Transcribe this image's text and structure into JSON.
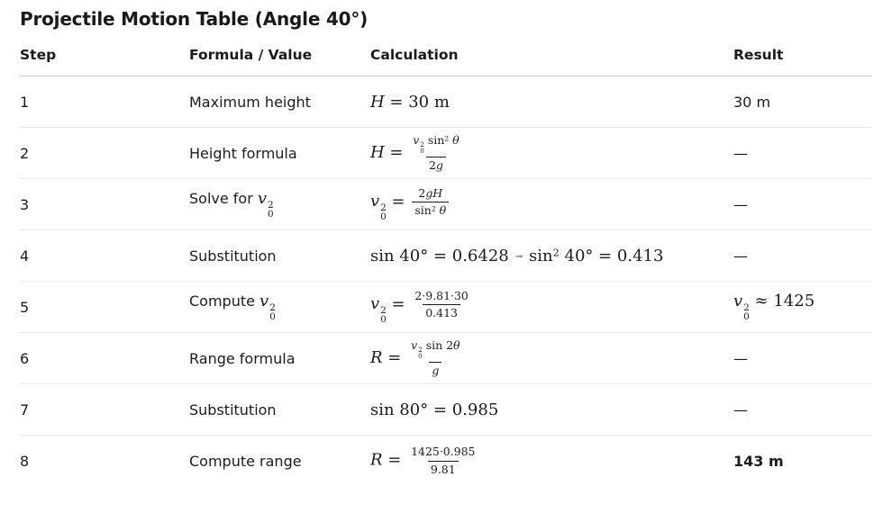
{
  "title": "Projectile Motion Table (Angle 40°)",
  "columns": [
    "Step",
    "Formula / Value",
    "Calculation",
    "Result"
  ],
  "colors": {
    "background": "#ffffff",
    "text": "#1c1c1c",
    "header_border": "#c9c9c9",
    "row_border": "#ececec"
  },
  "rows": [
    {
      "step": "1",
      "formula": [
        {
          "t": "s",
          "v": "Maximum height"
        }
      ],
      "calc": [
        {
          "t": "i",
          "v": "H"
        },
        {
          "t": "r",
          "v": " = 30 m"
        }
      ],
      "result": [
        {
          "t": "s",
          "v": "30 m"
        }
      ]
    },
    {
      "step": "2",
      "formula": [
        {
          "t": "s",
          "v": "Height formula"
        }
      ],
      "calc": [
        {
          "t": "i",
          "v": "H"
        },
        {
          "t": "r",
          "v": " = "
        },
        {
          "t": "frac",
          "num": [
            {
              "t": "ss",
              "b": "v",
              "sub": "0",
              "sup": "2"
            },
            {
              "t": "r",
              "v": " sin"
            },
            {
              "t": "sup",
              "v": "2"
            },
            {
              "t": "i",
              "v": " θ"
            }
          ],
          "den": [
            {
              "t": "r",
              "v": "2"
            },
            {
              "t": "i",
              "v": "g"
            }
          ]
        }
      ],
      "result": [
        {
          "t": "s",
          "v": "—"
        }
      ]
    },
    {
      "step": "3",
      "formula": [
        {
          "t": "s",
          "v": "Solve for "
        },
        {
          "t": "ss",
          "b": "v",
          "sub": "0",
          "sup": "2"
        }
      ],
      "calc": [
        {
          "t": "ss",
          "b": "v",
          "sub": "0",
          "sup": "2"
        },
        {
          "t": "r",
          "v": " = "
        },
        {
          "t": "frac",
          "num": [
            {
              "t": "r",
              "v": "2"
            },
            {
              "t": "i",
              "v": "gH"
            }
          ],
          "den": [
            {
              "t": "r",
              "v": "sin"
            },
            {
              "t": "sup",
              "v": "2"
            },
            {
              "t": "i",
              "v": " θ"
            }
          ]
        }
      ],
      "result": [
        {
          "t": "s",
          "v": "—"
        }
      ]
    },
    {
      "step": "4",
      "formula": [
        {
          "t": "s",
          "v": "Substitution"
        }
      ],
      "calc": [
        {
          "t": "r",
          "v": "sin 40° = 0.6428"
        },
        {
          "t": "arr",
          "v": "→"
        },
        {
          "t": "r",
          "v": "sin"
        },
        {
          "t": "sup",
          "v": "2"
        },
        {
          "t": "r",
          "v": " 40° = 0.413"
        }
      ],
      "result": [
        {
          "t": "s",
          "v": "—"
        }
      ]
    },
    {
      "step": "5",
      "formula": [
        {
          "t": "s",
          "v": "Compute "
        },
        {
          "t": "ss",
          "b": "v",
          "sub": "0",
          "sup": "2"
        }
      ],
      "calc": [
        {
          "t": "ss",
          "b": "v",
          "sub": "0",
          "sup": "2"
        },
        {
          "t": "r",
          "v": " = "
        },
        {
          "t": "frac",
          "num": [
            {
              "t": "r",
              "v": "2·9.81·30"
            }
          ],
          "den": [
            {
              "t": "r",
              "v": "0.413"
            }
          ]
        }
      ],
      "result": [
        {
          "t": "ss",
          "b": "v",
          "sub": "0",
          "sup": "2"
        },
        {
          "t": "r",
          "v": " ≈ 1425"
        }
      ]
    },
    {
      "step": "6",
      "formula": [
        {
          "t": "s",
          "v": "Range formula"
        }
      ],
      "calc": [
        {
          "t": "i",
          "v": "R"
        },
        {
          "t": "r",
          "v": " = "
        },
        {
          "t": "frac",
          "num": [
            {
              "t": "ss",
              "b": "v",
              "sub": "0",
              "sup": "2"
            },
            {
              "t": "r",
              "v": " sin 2"
            },
            {
              "t": "i",
              "v": "θ"
            }
          ],
          "den": [
            {
              "t": "i",
              "v": "g"
            }
          ]
        }
      ],
      "result": [
        {
          "t": "s",
          "v": "—"
        }
      ]
    },
    {
      "step": "7",
      "formula": [
        {
          "t": "s",
          "v": "Substitution"
        }
      ],
      "calc": [
        {
          "t": "r",
          "v": "sin 80° = 0.985"
        }
      ],
      "result": [
        {
          "t": "s",
          "v": "—"
        }
      ]
    },
    {
      "step": "8",
      "formula": [
        {
          "t": "s",
          "v": "Compute range"
        }
      ],
      "calc": [
        {
          "t": "i",
          "v": "R"
        },
        {
          "t": "r",
          "v": " = "
        },
        {
          "t": "frac",
          "num": [
            {
              "t": "r",
              "v": "1425·0.985"
            }
          ],
          "den": [
            {
              "t": "r",
              "v": "9.81"
            }
          ]
        }
      ],
      "result": [
        {
          "t": "sb",
          "v": "143 m"
        }
      ]
    }
  ]
}
